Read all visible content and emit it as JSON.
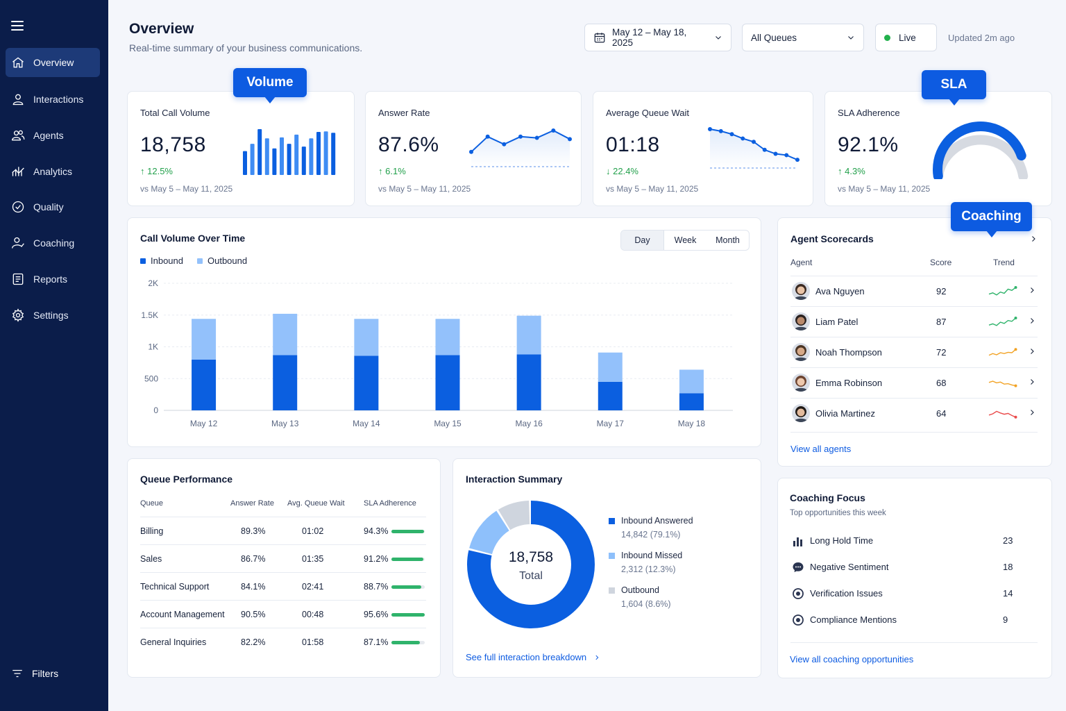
{
  "sidebar": {
    "items": [
      {
        "label": "Overview",
        "icon": "home-icon"
      },
      {
        "label": "Interactions",
        "icon": "user-icon"
      },
      {
        "label": "Agents",
        "icon": "users-icon"
      },
      {
        "label": "Analytics",
        "icon": "analytics-icon"
      },
      {
        "label": "Quality",
        "icon": "check-circle-icon"
      },
      {
        "label": "Coaching",
        "icon": "coaching-icon"
      },
      {
        "label": "Reports",
        "icon": "report-icon"
      },
      {
        "label": "Settings",
        "icon": "gear-icon"
      }
    ],
    "filters_label": "Filters"
  },
  "header": {
    "title": "Overview",
    "subtitle": "Real-time summary of your business communications.",
    "date_range": "May 12 – May 18, 2025",
    "queue_select": "All Queues",
    "live_label": "Live",
    "updated": "Updated 2m ago"
  },
  "callouts": {
    "volume": "Volume",
    "sla": "SLA",
    "coaching": "Coaching"
  },
  "kpis": [
    {
      "label": "Total Call Volume",
      "value": "18,758",
      "delta": "12.5%",
      "direction": "up",
      "compare": "vs May 5 – May 11, 2025",
      "spark_bars": [
        52,
        68,
        100,
        80,
        58,
        82,
        68,
        88,
        62,
        80,
        94,
        95,
        92
      ]
    },
    {
      "label": "Answer Rate",
      "value": "87.6%",
      "delta": "6.1%",
      "direction": "up",
      "compare": "vs May 5 – May 11, 2025",
      "spark_line": [
        0.3,
        0.8,
        0.55,
        0.8,
        0.76,
        1.0,
        0.72
      ]
    },
    {
      "label": "Average Queue Wait",
      "value": "01:18",
      "delta": "22.4%",
      "direction": "down",
      "compare": "vs May 5 – May 11, 2025",
      "spark_line": [
        1.0,
        0.94,
        0.85,
        0.72,
        0.62,
        0.38,
        0.26,
        0.22,
        0.08
      ]
    },
    {
      "label": "SLA Adherence",
      "value": "92.1%",
      "delta": "4.3%",
      "direction": "up",
      "compare": "vs May 5 – May 11, 2025",
      "gauge_fraction": 0.86
    }
  ],
  "volume_chart": {
    "title": "Call Volume Over Time",
    "tabs": [
      "Day",
      "Week",
      "Month"
    ],
    "active_tab": "Day",
    "legend": [
      "Inbound",
      "Outbound"
    ],
    "colors": {
      "inbound": "#0b5fe0",
      "outbound": "#93c1fb"
    },
    "y_ticks": [
      "2K",
      "1.5K",
      "1K",
      "500",
      "0"
    ]
  },
  "chart_data": {
    "type": "bar",
    "stacked": true,
    "title": "Call Volume Over Time",
    "categories": [
      "May 12",
      "May 13",
      "May 14",
      "May 15",
      "May 16",
      "May 17",
      "May 18"
    ],
    "series": [
      {
        "name": "Inbound",
        "values": [
          800,
          870,
          860,
          870,
          880,
          450,
          270
        ]
      },
      {
        "name": "Outbound",
        "values": [
          640,
          650,
          580,
          570,
          610,
          460,
          370
        ]
      }
    ],
    "ylim": [
      0,
      2000
    ],
    "grid": true,
    "legend_position": "top-left"
  },
  "queue_performance": {
    "title": "Queue Performance",
    "headers": [
      "Queue",
      "Answer Rate",
      "Avg. Queue Wait",
      "SLA Adherence"
    ],
    "rows": [
      {
        "queue": "Billing",
        "answer_rate": "89.3%",
        "wait": "01:02",
        "sla": "94.3%",
        "sla_value": 0.98
      },
      {
        "queue": "Sales",
        "answer_rate": "86.7%",
        "wait": "01:35",
        "sla": "91.2%",
        "sla_value": 0.95
      },
      {
        "queue": "Technical Support",
        "answer_rate": "84.1%",
        "wait": "02:41",
        "sla": "88.7%",
        "sla_value": 0.9
      },
      {
        "queue": "Account Management",
        "answer_rate": "90.5%",
        "wait": "00:48",
        "sla": "95.6%",
        "sla_value": 0.99
      },
      {
        "queue": "General Inquiries",
        "answer_rate": "82.2%",
        "wait": "01:58",
        "sla": "87.1%",
        "sla_value": 0.85
      }
    ]
  },
  "interaction_summary": {
    "title": "Interaction Summary",
    "total": "18,758",
    "total_label": "Total",
    "segments": [
      {
        "label": "Inbound Answered",
        "value": "14,842 (79.1%)",
        "fraction": 0.791,
        "color": "#0b5fe0"
      },
      {
        "label": "Inbound Missed",
        "value": "2,312 (12.3%)",
        "fraction": 0.123,
        "color": "#8ec0fb"
      },
      {
        "label": "Outbound",
        "value": "1,604 (8.6%)",
        "fraction": 0.086,
        "color": "#cfd5de"
      }
    ],
    "link": "See full interaction breakdown"
  },
  "scorecards": {
    "title": "Agent Scorecards",
    "headers": [
      "Agent",
      "Score",
      "Trend"
    ],
    "agents": [
      {
        "name": "Ava Nguyen",
        "score": "92",
        "trend_color": "#2fb36b",
        "hair": "#3b2a22",
        "skin": "#e8c3a6"
      },
      {
        "name": "Liam Patel",
        "score": "87",
        "trend_color": "#2fb36b",
        "hair": "#2a2220",
        "skin": "#b98a6c"
      },
      {
        "name": "Noah Thompson",
        "score": "72",
        "trend_color": "#f2a223",
        "hair": "#4a3424",
        "skin": "#d6a988"
      },
      {
        "name": "Emma Robinson",
        "score": "68",
        "trend_color": "#f2a223",
        "hair": "#6b4330",
        "skin": "#edc8ad"
      },
      {
        "name": "Olivia Martinez",
        "score": "64",
        "trend_color": "#ea4b4b",
        "hair": "#1f1915",
        "skin": "#e3bb9d"
      }
    ],
    "link": "View all agents"
  },
  "coaching_focus": {
    "title": "Coaching Focus",
    "subtitle": "Top opportunities this week",
    "items": [
      {
        "label": "Long Hold Time",
        "count": "23",
        "icon": "bar-chart-icon"
      },
      {
        "label": "Negative Sentiment",
        "count": "18",
        "icon": "chat-bubble-icon"
      },
      {
        "label": "Verification Issues",
        "count": "14",
        "icon": "target-icon"
      },
      {
        "label": "Compliance Mentions",
        "count": "9",
        "icon": "target-icon"
      }
    ],
    "link": "View all coaching opportunities"
  }
}
